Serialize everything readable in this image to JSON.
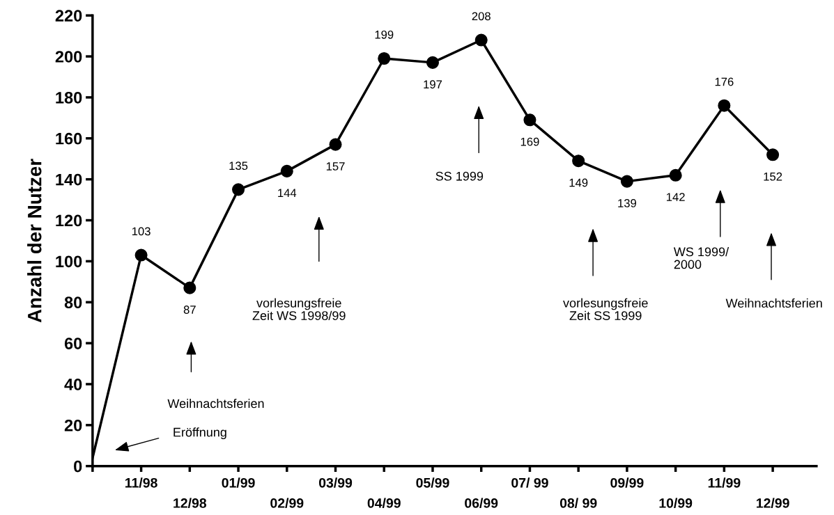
{
  "chart_data": {
    "type": "line",
    "ylabel": "Anzahl der Nutzer",
    "categories": [
      null,
      "11/98",
      "12/98",
      "01/99",
      "02/99",
      "03/99",
      "04/99",
      "05/99",
      "06/99",
      "07/ 99",
      "08/ 99",
      "09/99",
      "10/99",
      "11/99",
      "12/99"
    ],
    "series": [
      {
        "color": "#000000",
        "values": [
          4,
          103,
          87,
          135,
          144,
          157,
          199,
          197,
          208,
          169,
          149,
          139,
          142,
          176,
          152
        ],
        "value_labels": [
          null,
          "103",
          "87",
          "135",
          "144",
          "157",
          "199",
          "197",
          "208",
          "169",
          "149",
          "139",
          "142",
          "176",
          "152"
        ]
      }
    ],
    "ylim": [
      0,
      220
    ],
    "yticks": [
      0,
      20,
      40,
      60,
      80,
      100,
      120,
      140,
      160,
      180,
      200,
      220
    ],
    "marker": "circle",
    "line_style": "solid",
    "grid": false,
    "legend": false,
    "annotations": [
      "Eröffnung",
      "Weihnachtsferien",
      "vorlesungsfreie\nZeit WS 1998/99",
      "SS 1999",
      "vorlesungsfreie\nZeit SS 1999",
      "WS 1999/\n2000",
      "Weihnachtsferien"
    ]
  }
}
